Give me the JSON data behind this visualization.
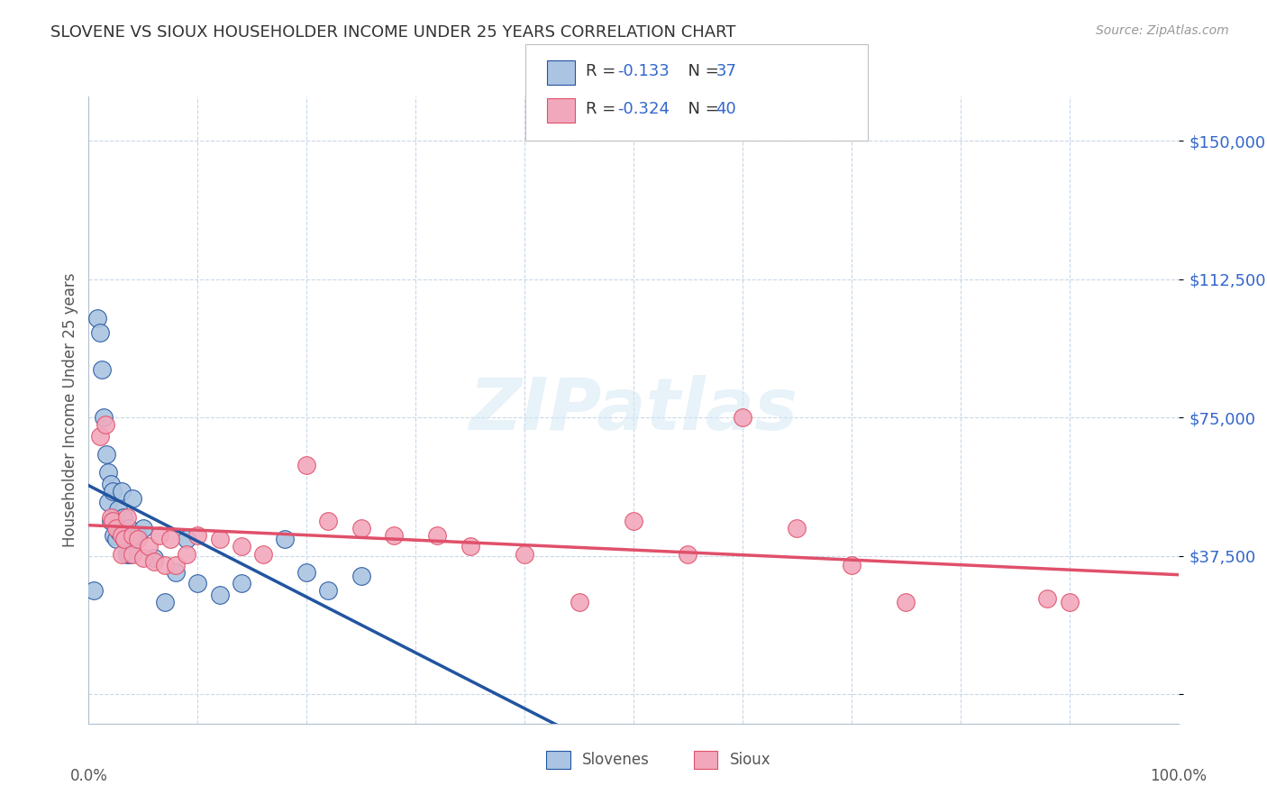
{
  "title": "SLOVENE VS SIOUX HOUSEHOLDER INCOME UNDER 25 YEARS CORRELATION CHART",
  "source": "Source: ZipAtlas.com",
  "ylabel": "Householder Income Under 25 years",
  "ytick_vals": [
    0,
    37500,
    75000,
    112500,
    150000
  ],
  "ytick_labels": [
    "",
    "$37,500",
    "$75,000",
    "$112,500",
    "$150,000"
  ],
  "xlim": [
    0.0,
    1.0
  ],
  "ylim": [
    -8000,
    162000
  ],
  "slovene_color": "#aac4e2",
  "sioux_color": "#f2a8bc",
  "slovene_line_color": "#2255a0",
  "sioux_line_color": "#e0506a",
  "dashed_color": "#90b8d8",
  "bg_color": "#ffffff",
  "grid_color": "#c8d8e8",
  "watermark": "ZIPatlas",
  "slovene_x": [
    0.005,
    0.008,
    0.01,
    0.012,
    0.014,
    0.016,
    0.018,
    0.018,
    0.02,
    0.02,
    0.022,
    0.023,
    0.025,
    0.025,
    0.027,
    0.028,
    0.03,
    0.032,
    0.033,
    0.035,
    0.037,
    0.038,
    0.04,
    0.042,
    0.045,
    0.05,
    0.06,
    0.07,
    0.08,
    0.09,
    0.1,
    0.12,
    0.14,
    0.18,
    0.2,
    0.22,
    0.25
  ],
  "slovene_y": [
    28000,
    102000,
    98000,
    88000,
    75000,
    65000,
    52000,
    60000,
    57000,
    47000,
    55000,
    43000,
    42000,
    48000,
    50000,
    44000,
    55000,
    48000,
    42000,
    38000,
    45000,
    38000,
    53000,
    42000,
    43000,
    45000,
    37000,
    25000,
    33000,
    42000,
    30000,
    27000,
    30000,
    42000,
    33000,
    28000,
    32000
  ],
  "sioux_x": [
    0.01,
    0.015,
    0.02,
    0.022,
    0.025,
    0.03,
    0.03,
    0.033,
    0.035,
    0.04,
    0.04,
    0.045,
    0.05,
    0.055,
    0.06,
    0.065,
    0.07,
    0.075,
    0.08,
    0.09,
    0.1,
    0.12,
    0.14,
    0.16,
    0.2,
    0.22,
    0.25,
    0.28,
    0.32,
    0.35,
    0.4,
    0.45,
    0.5,
    0.55,
    0.6,
    0.65,
    0.7,
    0.75,
    0.88,
    0.9
  ],
  "sioux_y": [
    70000,
    73000,
    48000,
    47000,
    45000,
    43000,
    38000,
    42000,
    48000,
    43000,
    38000,
    42000,
    37000,
    40000,
    36000,
    43000,
    35000,
    42000,
    35000,
    38000,
    43000,
    42000,
    40000,
    38000,
    62000,
    47000,
    45000,
    43000,
    43000,
    40000,
    38000,
    25000,
    47000,
    38000,
    75000,
    45000,
    35000,
    25000,
    26000,
    25000
  ]
}
